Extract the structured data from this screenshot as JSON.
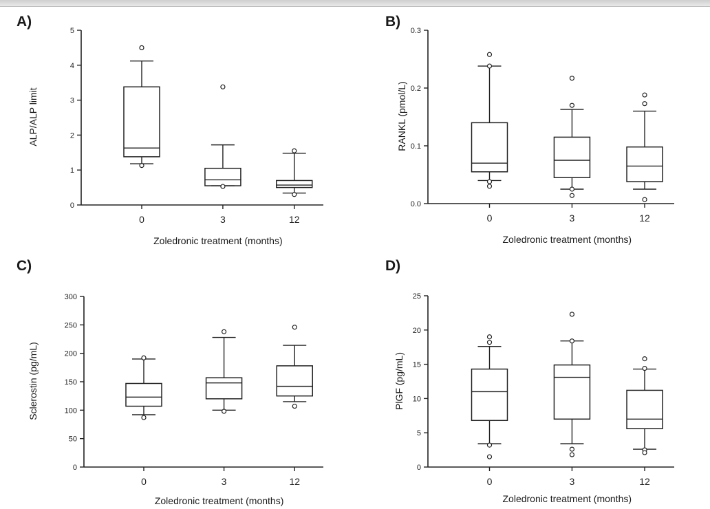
{
  "chart_data": [
    {
      "panel_label": "A)",
      "type": "box",
      "xlabel": "Zoledronic treatment (months)",
      "ylabel": "ALP/ALP limit",
      "ylim": [
        0,
        5
      ],
      "yticks": [
        0,
        1,
        2,
        3,
        4,
        5
      ],
      "categories": [
        "0",
        "3",
        "12"
      ],
      "boxes": [
        {
          "whisker_low": 1.18,
          "q1": 1.38,
          "median": 1.63,
          "q3": 3.38,
          "whisker_high": 4.12,
          "outliers": [
            4.5,
            1.13
          ]
        },
        {
          "whisker_low": 0.55,
          "q1": 0.55,
          "median": 0.72,
          "q3": 1.05,
          "whisker_high": 1.72,
          "outliers": [
            3.38,
            0.53
          ]
        },
        {
          "whisker_low": 0.34,
          "q1": 0.5,
          "median": 0.57,
          "q3": 0.7,
          "whisker_high": 1.48,
          "outliers": [
            1.55,
            0.3
          ]
        }
      ]
    },
    {
      "panel_label": "B)",
      "type": "box",
      "xlabel": "Zoledronic treatment (months)",
      "ylabel": "RANKL (pmol/L)",
      "ylim": [
        0,
        0.3
      ],
      "yticks": [
        "0.0",
        "0.1",
        "0.2",
        "0.3"
      ],
      "categories": [
        "0",
        "3",
        "12"
      ],
      "boxes": [
        {
          "whisker_low": 0.04,
          "q1": 0.055,
          "median": 0.07,
          "q3": 0.14,
          "whisker_high": 0.238,
          "outliers": [
            0.258,
            0.238,
            0.038,
            0.03
          ]
        },
        {
          "whisker_low": 0.025,
          "q1": 0.045,
          "median": 0.075,
          "q3": 0.115,
          "whisker_high": 0.163,
          "outliers": [
            0.217,
            0.17,
            0.025,
            0.014
          ]
        },
        {
          "whisker_low": 0.025,
          "q1": 0.038,
          "median": 0.065,
          "q3": 0.098,
          "whisker_high": 0.16,
          "outliers": [
            0.188,
            0.173,
            0.007
          ]
        }
      ]
    },
    {
      "panel_label": "C)",
      "type": "box",
      "xlabel": "Zoledronic treatment (months)",
      "ylabel": "Sclerostin (pg/mL)",
      "ylim": [
        0,
        300
      ],
      "yticks": [
        0,
        50,
        100,
        150,
        200,
        250,
        300
      ],
      "categories": [
        "0",
        "3",
        "12"
      ],
      "boxes": [
        {
          "whisker_low": 92,
          "q1": 107,
          "median": 123,
          "q3": 147,
          "whisker_high": 190,
          "outliers": [
            192,
            87
          ]
        },
        {
          "whisker_low": 100,
          "q1": 120,
          "median": 148,
          "q3": 157,
          "whisker_high": 228,
          "outliers": [
            238,
            98
          ]
        },
        {
          "whisker_low": 115,
          "q1": 125,
          "median": 142,
          "q3": 178,
          "whisker_high": 214,
          "outliers": [
            246,
            107
          ]
        }
      ]
    },
    {
      "panel_label": "D)",
      "type": "box",
      "xlabel": "Zoledronic treatment (months)",
      "ylabel": "PlGF (pg/mL)",
      "ylim": [
        0,
        25
      ],
      "yticks": [
        0,
        5,
        10,
        15,
        20,
        25
      ],
      "categories": [
        "0",
        "3",
        "12"
      ],
      "boxes": [
        {
          "whisker_low": 3.4,
          "q1": 6.8,
          "median": 11,
          "q3": 14.3,
          "whisker_high": 17.6,
          "outliers": [
            19,
            18.2,
            3.2,
            1.5
          ]
        },
        {
          "whisker_low": 3.4,
          "q1": 7,
          "median": 13.1,
          "q3": 14.9,
          "whisker_high": 18.4,
          "outliers": [
            22.3,
            18.4,
            2.6,
            1.8
          ]
        },
        {
          "whisker_low": 2.6,
          "q1": 5.6,
          "median": 7,
          "q3": 11.2,
          "whisker_high": 14.3,
          "outliers": [
            15.8,
            14.4,
            2.5,
            2.1
          ]
        }
      ]
    }
  ]
}
